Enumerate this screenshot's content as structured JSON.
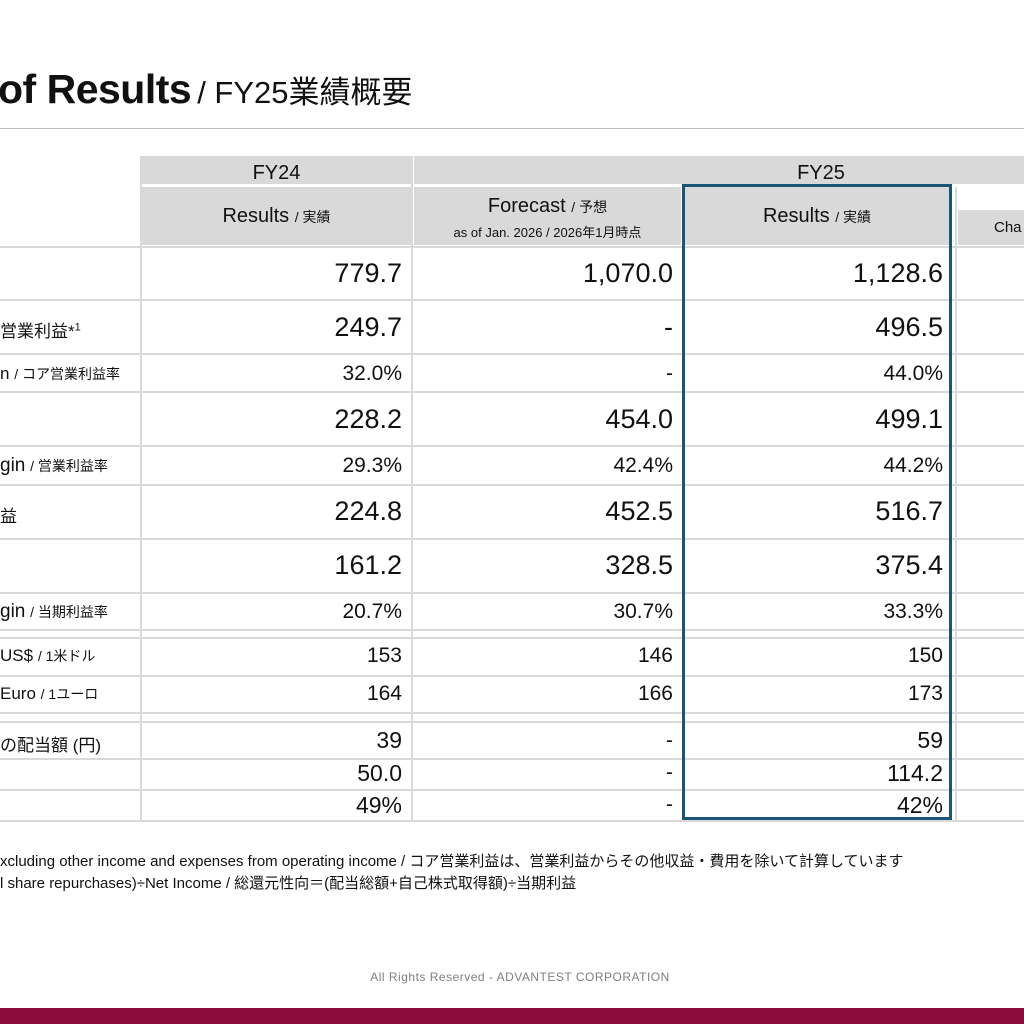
{
  "title": {
    "main": "of Results",
    "sub": "/ FY25業績概要"
  },
  "headers": {
    "fy24": "FY24",
    "fy25": "FY25",
    "results_fy24": {
      "en": "Results",
      "ja": "/ 実績"
    },
    "forecast": {
      "en": "Forecast",
      "ja": "/ 予想",
      "asof": "as of Jan. 2026 / 2026年1月時点"
    },
    "results_fy25": {
      "en": "Results",
      "ja": "/ 実績"
    },
    "change_partial": "Cha"
  },
  "rows": [
    {
      "label": "",
      "label_sub": "",
      "fy24": "779.7",
      "forecast": "1,070.0",
      "fy25": "1,128.6",
      "size": "big"
    },
    {
      "label": "営業利益*",
      "sup": "1",
      "label_sub": "",
      "fy24": "249.7",
      "forecast": "-",
      "fy25": "496.5",
      "size": "big"
    },
    {
      "label": "n",
      "label_sub": "/ コア営業利益率",
      "fy24": "32.0%",
      "forecast": "-",
      "fy25": "44.0%",
      "size": "mid"
    },
    {
      "label": "",
      "label_sub": "",
      "fy24": "228.2",
      "forecast": "454.0",
      "fy25": "499.1",
      "size": "big"
    },
    {
      "label": "gin",
      "label_sub": "/ 営業利益率",
      "fy24": "29.3%",
      "forecast": "42.4%",
      "fy25": "44.2%",
      "size": "mid"
    },
    {
      "label": "益",
      "label_sub": "",
      "fy24": "224.8",
      "forecast": "452.5",
      "fy25": "516.7",
      "size": "big"
    },
    {
      "label": "",
      "label_sub": "",
      "fy24": "161.2",
      "forecast": "328.5",
      "fy25": "375.4",
      "size": "big"
    },
    {
      "label": "gin",
      "label_sub": "/ 当期利益率",
      "fy24": "20.7%",
      "forecast": "30.7%",
      "fy25": "33.3%",
      "size": "mid"
    },
    {
      "label": "US$",
      "label_sub": "/ 1米ドル",
      "fy24": "153",
      "forecast": "146",
      "fy25": "150",
      "size": "mid"
    },
    {
      "label": "Euro",
      "label_sub": "/ 1ユーロ",
      "fy24": "164",
      "forecast": "166",
      "fy25": "173",
      "size": "mid"
    },
    {
      "label": "の配当額 (円)",
      "label_sub": "",
      "fy24": "39",
      "forecast": "-",
      "fy25": "59",
      "size": "mid2"
    },
    {
      "label": "",
      "label_sub": "",
      "fy24": "50.0",
      "forecast": "-",
      "fy25": "114.2",
      "size": "mid2"
    },
    {
      "label": "",
      "label_sub": "",
      "fy24": "49%",
      "forecast": "-",
      "fy25": "42%",
      "size": "mid2"
    }
  ],
  "footnotes": [
    "xcluding other income and expenses from operating income / コア営業利益は、営業利益からその他収益・費用を除いて計算しています",
    "l share repurchases)÷Net Income /  総還元性向＝(配当総額+自己株式取得額)÷当期利益"
  ],
  "copyright": "All Rights Reserved - ADVANTEST CORPORATION",
  "colors": {
    "header_bg": "#d9d9d9",
    "highlight_border": "#1a5576",
    "brand_bar": "#8c0c3c"
  }
}
